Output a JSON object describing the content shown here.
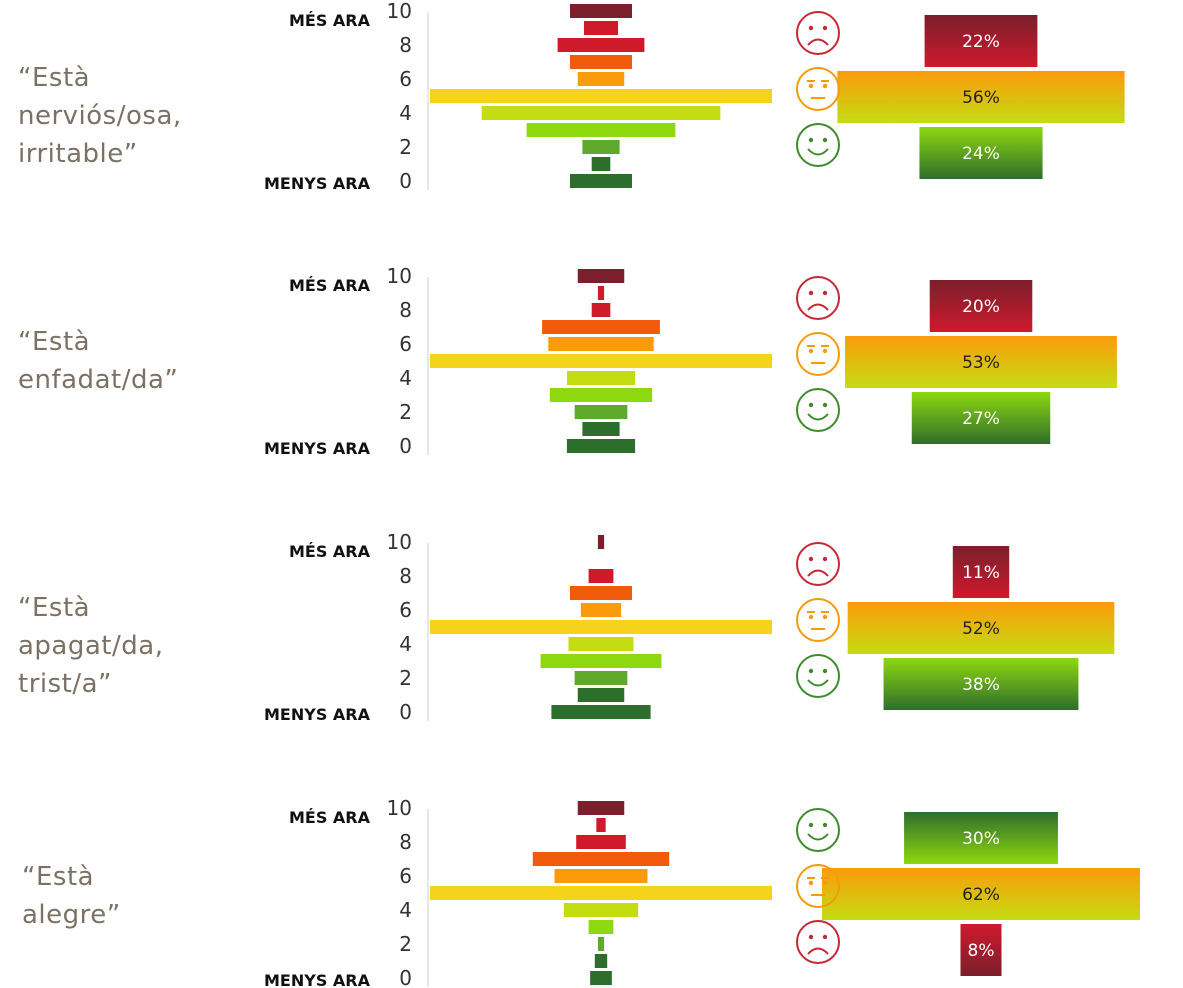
{
  "axis": {
    "top_label": "MÉS ARA",
    "bottom_label": "MENYS ARA"
  },
  "colors": {
    "dark_red": "#7a1f2b",
    "red": "#cf1a2c",
    "orange": "#f25a0b",
    "amber": "#fb9b0b",
    "yellow": "#f5d31a",
    "yellow_green": "#c4dc12",
    "light_green": "#8ed80f",
    "green": "#5fa92d",
    "dark_green": "#2e6e2c",
    "sad_face": "#c62834",
    "neutral_face": "#f59a0b",
    "happy_face": "#3d8b2c"
  },
  "panels": [
    {
      "title_lines": [
        "“Està",
        "nerviós/osa,",
        "irritable”"
      ]
    },
    {
      "title_lines": [
        "“Està",
        "enfadat/da”"
      ]
    },
    {
      "title_lines": [
        "“Està",
        "apagat/da,",
        "trist/a”"
      ]
    },
    {
      "title_lines": [
        "“Està",
        "alegre”"
      ]
    }
  ],
  "chart_data": [
    {
      "type": "bar",
      "x": [
        0,
        1,
        2,
        3,
        4,
        5,
        6,
        7,
        8,
        9,
        10
      ],
      "y_ticks": [
        0,
        2,
        4,
        6,
        8,
        10
      ],
      "values": [
        20,
        6,
        12,
        48,
        77,
        108,
        15,
        20,
        28,
        11,
        20
      ],
      "summary": [
        {
          "mood": "sad",
          "label": "22%",
          "value": 22
        },
        {
          "mood": "neutral",
          "label": "56%",
          "value": 56
        },
        {
          "mood": "happy",
          "label": "24%",
          "value": 24
        }
      ]
    },
    {
      "type": "bar",
      "x": [
        0,
        1,
        2,
        3,
        4,
        5,
        6,
        7,
        8,
        9,
        10
      ],
      "y_ticks": [
        0,
        2,
        4,
        6,
        8,
        10
      ],
      "values": [
        22,
        12,
        17,
        33,
        22,
        108,
        34,
        38,
        6,
        2,
        15
      ],
      "summary": [
        {
          "mood": "sad",
          "label": "20%",
          "value": 20
        },
        {
          "mood": "neutral",
          "label": "53%",
          "value": 53
        },
        {
          "mood": "happy",
          "label": "27%",
          "value": 27
        }
      ]
    },
    {
      "type": "bar",
      "x": [
        0,
        1,
        2,
        3,
        4,
        5,
        6,
        7,
        8,
        9,
        10
      ],
      "y_ticks": [
        0,
        2,
        4,
        6,
        8,
        10
      ],
      "values": [
        32,
        15,
        17,
        39,
        21,
        108,
        13,
        20,
        8,
        0,
        2
      ],
      "summary": [
        {
          "mood": "sad",
          "label": "11%",
          "value": 11
        },
        {
          "mood": "neutral",
          "label": "52%",
          "value": 52
        },
        {
          "mood": "happy",
          "label": "38%",
          "value": 38
        }
      ]
    },
    {
      "type": "bar",
      "x": [
        0,
        1,
        2,
        3,
        4,
        5,
        6,
        7,
        8,
        9,
        10
      ],
      "y_ticks": [
        0,
        2,
        4,
        6,
        8,
        10
      ],
      "values": [
        7,
        4,
        2,
        8,
        24,
        108,
        30,
        44,
        16,
        3,
        15
      ],
      "summary": [
        {
          "mood": "happy",
          "label": "30%",
          "value": 30
        },
        {
          "mood": "neutral",
          "label": "62%",
          "value": 62
        },
        {
          "mood": "sad",
          "label": "8%",
          "value": 8
        }
      ]
    }
  ]
}
